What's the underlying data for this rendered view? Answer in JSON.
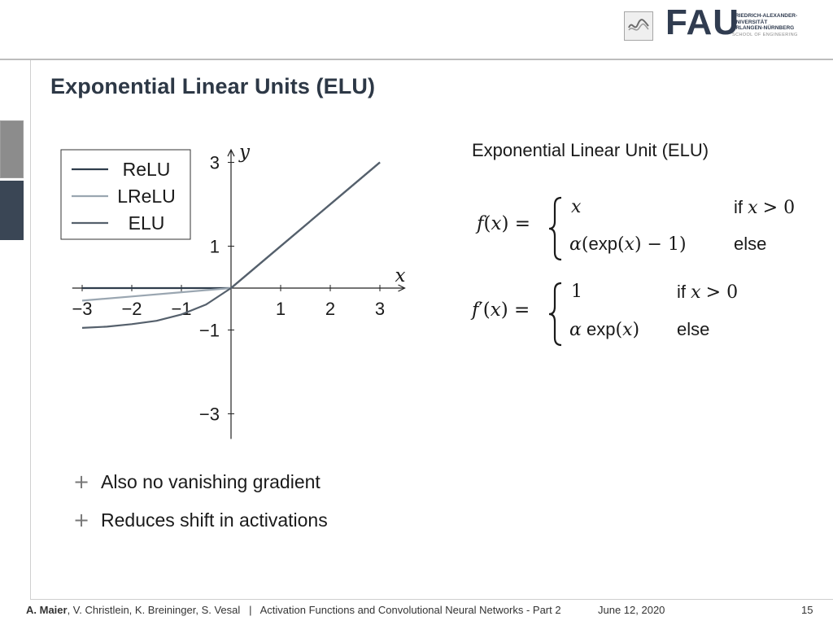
{
  "header": {
    "logo_word": "FAU",
    "university_lines": [
      "FRIEDRICH-ALEXANDER-",
      "UNIVERSITÄT",
      "ERLANGEN-NÜRNBERG"
    ],
    "school": "SCHOOL OF ENGINEERING"
  },
  "slide": {
    "title": "Exponential Linear Units (ELU)",
    "right_heading": "Exponential Linear Unit (ELU)",
    "formula_f": {
      "lhs_name": "f",
      "arg": "x",
      "case1_value": "x",
      "case1_condition": "if",
      "case1_var": "x",
      "case1_rel": "> 0",
      "case2_alpha": "α",
      "case2_func": "exp",
      "case2_arg": "x",
      "case2_rest": "− 1",
      "case2_condition": "else"
    },
    "formula_fprime": {
      "lhs_name": "f",
      "prime": "′",
      "arg": "x",
      "case1_value": "1",
      "case1_condition": "if",
      "case1_var": "x",
      "case1_rel": "> 0",
      "case2_alpha": "α",
      "case2_func": "exp",
      "case2_arg": "x",
      "case2_condition": "else"
    },
    "bullets": [
      {
        "symbol": "+",
        "text": "Also no vanishing gradient"
      },
      {
        "symbol": "+",
        "text": "Reduces shift in activations"
      }
    ]
  },
  "chart_data": {
    "type": "line",
    "xlabel": "x",
    "ylabel": "y",
    "xlim": [
      -3.2,
      3.5
    ],
    "ylim": [
      -3.6,
      3.3
    ],
    "x_ticks": [
      -3,
      -2,
      -1,
      1,
      2,
      3
    ],
    "x_tick_labels": [
      "−3",
      "−2",
      "−1",
      "1",
      "2",
      "3"
    ],
    "y_ticks": [
      3,
      1,
      -1,
      -3
    ],
    "y_tick_labels": [
      "3",
      "1",
      "−1",
      "−3"
    ],
    "legend_position": "top-left",
    "series": [
      {
        "name": "ReLU",
        "color": "#2f3d4c",
        "x": [
          -3,
          -2,
          -1,
          0,
          1,
          2,
          3
        ],
        "y": [
          0,
          0,
          0,
          0,
          1,
          2,
          3
        ]
      },
      {
        "name": "LReLU",
        "color": "#9aa6b1",
        "x": [
          -3,
          -2,
          -1,
          0,
          1,
          2,
          3
        ],
        "y": [
          -0.3,
          -0.2,
          -0.1,
          0,
          1,
          2,
          3
        ]
      },
      {
        "name": "ELU",
        "color": "#55606c",
        "x": [
          -3,
          -2.5,
          -2,
          -1.5,
          -1,
          -0.5,
          0,
          1,
          2,
          3
        ],
        "y": [
          -0.95,
          -0.92,
          -0.86,
          -0.78,
          -0.63,
          -0.39,
          0,
          1,
          2,
          3
        ]
      }
    ]
  },
  "footer": {
    "author_bold": "A. Maier",
    "authors_rest": ", V. Christlein, K. Breininger, S. Vesal",
    "separator": "|",
    "lecture": "Activation Functions and Convolutional Neural Networks - Part 2",
    "date": "June 12, 2020",
    "page": "15"
  }
}
